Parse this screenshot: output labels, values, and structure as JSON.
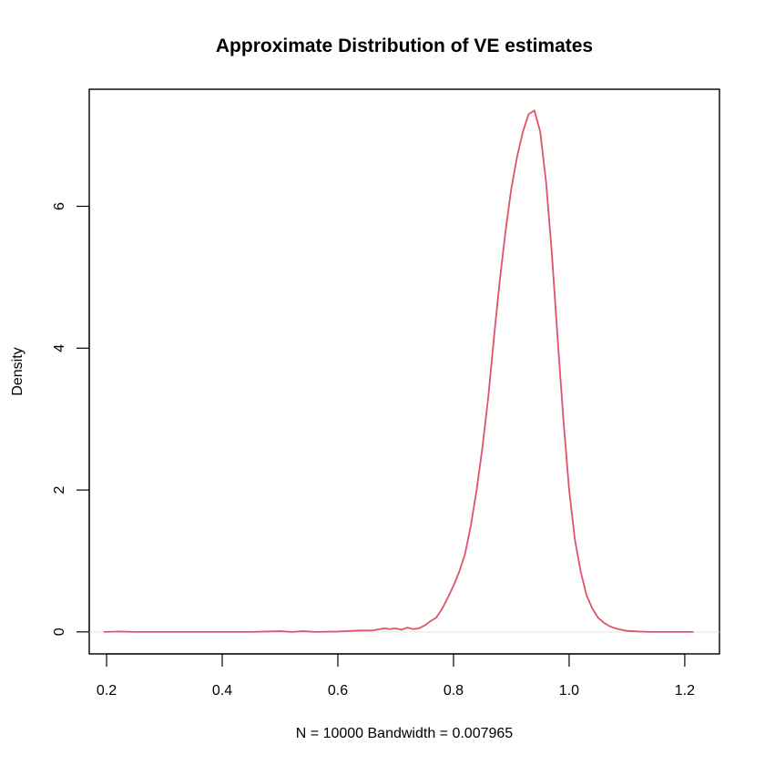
{
  "chart_data": {
    "type": "line",
    "title": "Approximate Distribution of VE estimates",
    "xlabel": "N = 10000   Bandwidth = 0.007965",
    "ylabel": "Density",
    "xlim": [
      0.17,
      1.26
    ],
    "ylim": [
      -0.31,
      7.65
    ],
    "x_ticks": [
      0.2,
      0.4,
      0.6,
      0.8,
      1.0,
      1.2
    ],
    "x_tick_labels": [
      "0.2",
      "0.4",
      "0.6",
      "0.8",
      "1.0",
      "1.2"
    ],
    "y_ticks": [
      0,
      2,
      4,
      6
    ],
    "y_tick_labels": [
      "0",
      "2",
      "4",
      "6"
    ],
    "grid": false,
    "baseline": 0,
    "series": [
      {
        "color": "#DF536B",
        "x": [
          0.195,
          0.22,
          0.25,
          0.3,
          0.35,
          0.4,
          0.45,
          0.5,
          0.52,
          0.54,
          0.56,
          0.6,
          0.64,
          0.66,
          0.68,
          0.69,
          0.7,
          0.71,
          0.72,
          0.73,
          0.74,
          0.75,
          0.76,
          0.77,
          0.78,
          0.79,
          0.8,
          0.81,
          0.82,
          0.83,
          0.84,
          0.85,
          0.86,
          0.87,
          0.88,
          0.89,
          0.9,
          0.91,
          0.92,
          0.93,
          0.94,
          0.95,
          0.96,
          0.97,
          0.98,
          0.99,
          1.0,
          1.01,
          1.02,
          1.03,
          1.04,
          1.05,
          1.06,
          1.07,
          1.08,
          1.09,
          1.1,
          1.12,
          1.14,
          1.16,
          1.18,
          1.2,
          1.215
        ],
        "y": [
          0.0,
          0.005,
          0.0,
          0.0,
          0.0,
          0.0,
          0.0,
          0.01,
          0.0,
          0.01,
          0.0,
          0.005,
          0.02,
          0.02,
          0.05,
          0.04,
          0.05,
          0.03,
          0.06,
          0.04,
          0.05,
          0.09,
          0.15,
          0.2,
          0.32,
          0.48,
          0.65,
          0.85,
          1.1,
          1.5,
          2.0,
          2.6,
          3.3,
          4.15,
          4.95,
          5.65,
          6.25,
          6.7,
          7.05,
          7.3,
          7.35,
          7.05,
          6.35,
          5.35,
          4.15,
          3.0,
          2.0,
          1.3,
          0.85,
          0.52,
          0.33,
          0.2,
          0.13,
          0.08,
          0.05,
          0.03,
          0.015,
          0.005,
          0.0,
          0.0,
          0.0,
          0.0,
          0.0
        ]
      }
    ]
  }
}
